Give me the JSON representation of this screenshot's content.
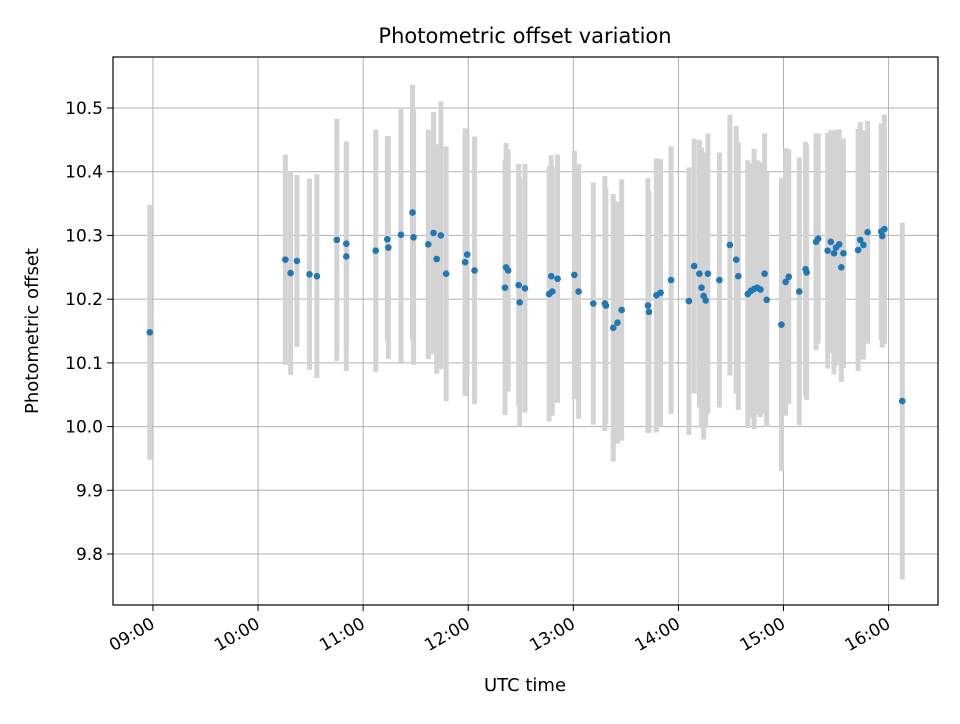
{
  "chart_data": {
    "type": "scatter",
    "title": "Photometric offset variation",
    "xlabel": "UTC time",
    "ylabel": "Photometric offset",
    "xlim_hours": [
      8.62,
      16.47
    ],
    "ylim": [
      9.72,
      10.58
    ],
    "grid": true,
    "x_ticks": [
      {
        "h": 9,
        "label": "09:00"
      },
      {
        "h": 10,
        "label": "10:00"
      },
      {
        "h": 11,
        "label": "11:00"
      },
      {
        "h": 12,
        "label": "12:00"
      },
      {
        "h": 13,
        "label": "13:00"
      },
      {
        "h": 14,
        "label": "14:00"
      },
      {
        "h": 15,
        "label": "15:00"
      },
      {
        "h": 16,
        "label": "16:00"
      }
    ],
    "y_ticks": [
      {
        "v": 9.8,
        "label": "9.8"
      },
      {
        "v": 9.9,
        "label": "9.9"
      },
      {
        "v": 10.0,
        "label": "10.0"
      },
      {
        "v": 10.1,
        "label": "10.1"
      },
      {
        "v": 10.2,
        "label": "10.2"
      },
      {
        "v": 10.3,
        "label": "10.3"
      },
      {
        "v": 10.4,
        "label": "10.4"
      },
      {
        "v": 10.5,
        "label": "10.5"
      }
    ],
    "colors": {
      "point": "#1f77b4",
      "errorbar": "#d3d3d3",
      "grid": "#b0b0b0"
    },
    "series": [
      {
        "name": "Photometric offset",
        "points": [
          {
            "t": 8.97,
            "y": 10.148,
            "err": 0.2
          },
          {
            "t": 10.26,
            "y": 10.262,
            "err": 0.165
          },
          {
            "t": 10.31,
            "y": 10.241,
            "err": 0.16
          },
          {
            "t": 10.37,
            "y": 10.26,
            "err": 0.135
          },
          {
            "t": 10.49,
            "y": 10.239,
            "err": 0.15
          },
          {
            "t": 10.56,
            "y": 10.236,
            "err": 0.16
          },
          {
            "t": 10.75,
            "y": 10.293,
            "err": 0.19
          },
          {
            "t": 10.84,
            "y": 10.267,
            "err": 0.18
          },
          {
            "t": 10.84,
            "y": 10.287,
            "err": 0.16
          },
          {
            "t": 11.12,
            "y": 10.276,
            "err": 0.19
          },
          {
            "t": 11.23,
            "y": 10.294,
            "err": 0.16
          },
          {
            "t": 11.24,
            "y": 10.281,
            "err": 0.175
          },
          {
            "t": 11.36,
            "y": 10.301,
            "err": 0.2
          },
          {
            "t": 11.47,
            "y": 10.336,
            "err": 0.2
          },
          {
            "t": 11.48,
            "y": 10.297,
            "err": 0.2
          },
          {
            "t": 11.62,
            "y": 10.286,
            "err": 0.18
          },
          {
            "t": 11.67,
            "y": 10.304,
            "err": 0.19
          },
          {
            "t": 11.7,
            "y": 10.263,
            "err": 0.18
          },
          {
            "t": 11.74,
            "y": 10.3,
            "err": 0.21
          },
          {
            "t": 11.79,
            "y": 10.24,
            "err": 0.2
          },
          {
            "t": 11.97,
            "y": 10.258,
            "err": 0.21
          },
          {
            "t": 11.99,
            "y": 10.27,
            "err": 0.19
          },
          {
            "t": 12.06,
            "y": 10.245,
            "err": 0.21
          },
          {
            "t": 12.35,
            "y": 10.218,
            "err": 0.2
          },
          {
            "t": 12.36,
            "y": 10.25,
            "err": 0.195
          },
          {
            "t": 12.38,
            "y": 10.245,
            "err": 0.19
          },
          {
            "t": 12.48,
            "y": 10.222,
            "err": 0.19
          },
          {
            "t": 12.49,
            "y": 10.195,
            "err": 0.195
          },
          {
            "t": 12.54,
            "y": 10.217,
            "err": 0.195
          },
          {
            "t": 12.77,
            "y": 10.208,
            "err": 0.2
          },
          {
            "t": 12.79,
            "y": 10.236,
            "err": 0.19
          },
          {
            "t": 12.8,
            "y": 10.212,
            "err": 0.195
          },
          {
            "t": 12.85,
            "y": 10.232,
            "err": 0.195
          },
          {
            "t": 13.01,
            "y": 10.238,
            "err": 0.195
          },
          {
            "t": 13.05,
            "y": 10.212,
            "err": 0.2
          },
          {
            "t": 13.19,
            "y": 10.193,
            "err": 0.19
          },
          {
            "t": 13.3,
            "y": 10.193,
            "err": 0.2
          },
          {
            "t": 13.31,
            "y": 10.19,
            "err": 0.185
          },
          {
            "t": 13.38,
            "y": 10.155,
            "err": 0.21
          },
          {
            "t": 13.42,
            "y": 10.163,
            "err": 0.19
          },
          {
            "t": 13.46,
            "y": 10.183,
            "err": 0.205
          },
          {
            "t": 13.71,
            "y": 10.19,
            "err": 0.2
          },
          {
            "t": 13.72,
            "y": 10.18,
            "err": 0.19
          },
          {
            "t": 13.79,
            "y": 10.206,
            "err": 0.215
          },
          {
            "t": 13.83,
            "y": 10.21,
            "err": 0.21
          },
          {
            "t": 13.93,
            "y": 10.23,
            "err": 0.21
          },
          {
            "t": 14.1,
            "y": 10.197,
            "err": 0.21
          },
          {
            "t": 14.15,
            "y": 10.252,
            "err": 0.2
          },
          {
            "t": 14.2,
            "y": 10.24,
            "err": 0.21
          },
          {
            "t": 14.22,
            "y": 10.218,
            "err": 0.22
          },
          {
            "t": 14.24,
            "y": 10.205,
            "err": 0.225
          },
          {
            "t": 14.26,
            "y": 10.198,
            "err": 0.2
          },
          {
            "t": 14.28,
            "y": 10.24,
            "err": 0.22
          },
          {
            "t": 14.39,
            "y": 10.23,
            "err": 0.2
          },
          {
            "t": 14.49,
            "y": 10.285,
            "err": 0.205
          },
          {
            "t": 14.55,
            "y": 10.262,
            "err": 0.21
          },
          {
            "t": 14.57,
            "y": 10.236,
            "err": 0.21
          },
          {
            "t": 14.66,
            "y": 10.208,
            "err": 0.21
          },
          {
            "t": 14.69,
            "y": 10.213,
            "err": 0.2
          },
          {
            "t": 14.72,
            "y": 10.216,
            "err": 0.22
          },
          {
            "t": 14.75,
            "y": 10.218,
            "err": 0.2
          },
          {
            "t": 14.78,
            "y": 10.215,
            "err": 0.2
          },
          {
            "t": 14.82,
            "y": 10.24,
            "err": 0.22
          },
          {
            "t": 14.84,
            "y": 10.199,
            "err": 0.2
          },
          {
            "t": 14.98,
            "y": 10.16,
            "err": 0.23
          },
          {
            "t": 15.02,
            "y": 10.227,
            "err": 0.21
          },
          {
            "t": 15.05,
            "y": 10.235,
            "err": 0.2
          },
          {
            "t": 15.15,
            "y": 10.212,
            "err": 0.21
          },
          {
            "t": 15.21,
            "y": 10.247,
            "err": 0.2
          },
          {
            "t": 15.22,
            "y": 10.242,
            "err": 0.2
          },
          {
            "t": 15.31,
            "y": 10.29,
            "err": 0.17
          },
          {
            "t": 15.33,
            "y": 10.295,
            "err": 0.165
          },
          {
            "t": 15.42,
            "y": 10.276,
            "err": 0.185
          },
          {
            "t": 15.45,
            "y": 10.29,
            "err": 0.175
          },
          {
            "t": 15.48,
            "y": 10.272,
            "err": 0.19
          },
          {
            "t": 15.5,
            "y": 10.281,
            "err": 0.185
          },
          {
            "t": 15.53,
            "y": 10.286,
            "err": 0.18
          },
          {
            "t": 15.55,
            "y": 10.25,
            "err": 0.18
          },
          {
            "t": 15.57,
            "y": 10.272,
            "err": 0.18
          },
          {
            "t": 15.71,
            "y": 10.277,
            "err": 0.19
          },
          {
            "t": 15.73,
            "y": 10.293,
            "err": 0.185
          },
          {
            "t": 15.76,
            "y": 10.285,
            "err": 0.18
          },
          {
            "t": 15.8,
            "y": 10.305,
            "err": 0.175
          },
          {
            "t": 15.93,
            "y": 10.306,
            "err": 0.17
          },
          {
            "t": 15.94,
            "y": 10.299,
            "err": 0.175
          },
          {
            "t": 15.96,
            "y": 10.31,
            "err": 0.18
          },
          {
            "t": 16.13,
            "y": 10.04,
            "err": 0.28
          }
        ]
      }
    ]
  }
}
